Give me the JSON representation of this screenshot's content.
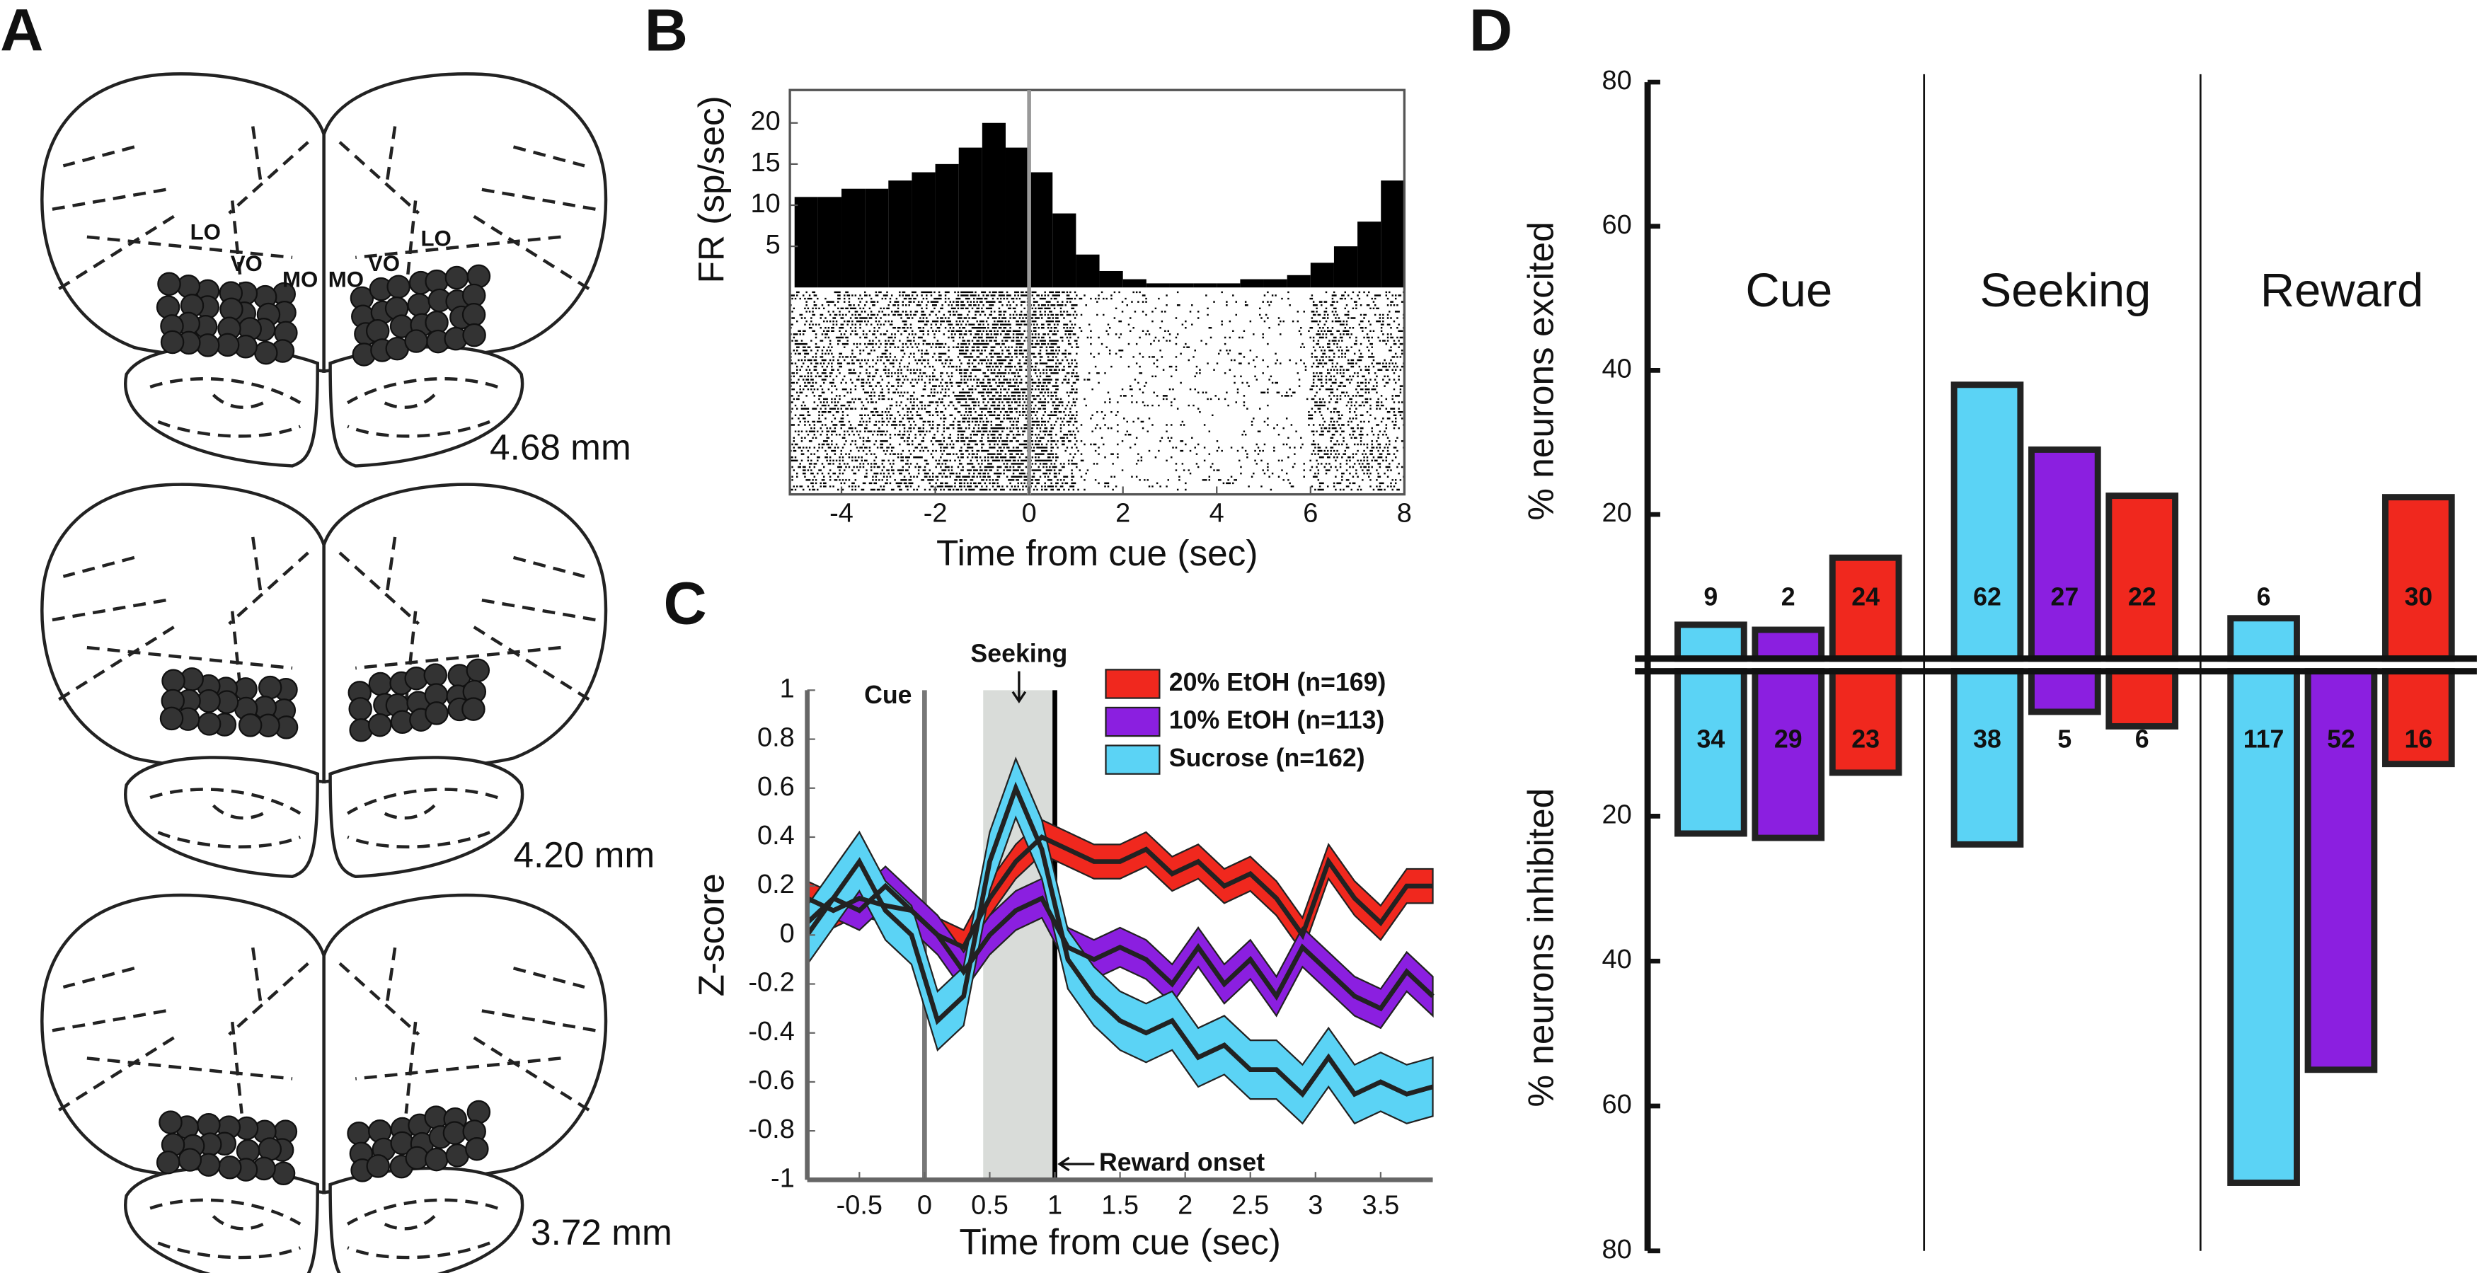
{
  "panel_labels": [
    "A",
    "B",
    "C",
    "D"
  ],
  "sections": {
    "region_labels": [
      "LO",
      "VO",
      "MO",
      "MO",
      "VO",
      "LO"
    ],
    "depths": [
      "4.68 mm",
      "4.20 mm",
      "3.72 mm"
    ]
  },
  "chart_data": [
    {
      "type": "histogram",
      "xlabel": "Time from cue (sec)",
      "ylabel": "FR (sp/sec)",
      "bins": [
        -5,
        -4.5,
        -4,
        -3.5,
        -3,
        -2.5,
        -2,
        -1.5,
        -1,
        -0.5,
        0,
        0.5,
        1,
        1.5,
        2,
        2.5,
        3,
        3.5,
        4,
        4.5,
        5,
        5.5,
        6,
        6.5,
        7,
        7.5,
        8
      ],
      "values": [
        11,
        11,
        12,
        12,
        13,
        14,
        15,
        17,
        20,
        17,
        14,
        9,
        4,
        2,
        1,
        0.5,
        0.5,
        0.5,
        0.5,
        1,
        1,
        1.5,
        3,
        5,
        8,
        13
      ],
      "color": "#000000",
      "xlim": [
        -5.1,
        8
      ],
      "xticks": [
        -4,
        -2,
        0,
        2,
        4,
        6,
        8
      ],
      "ylim": [
        0,
        24
      ],
      "yticks": [
        5,
        10,
        15,
        20
      ],
      "vline": 0
    },
    {
      "type": "line",
      "xlabel": "Time from cue (sec)",
      "ylabel": "Z-score",
      "x": [
        -0.9,
        -0.7,
        -0.5,
        -0.3,
        -0.1,
        0.1,
        0.3,
        0.5,
        0.7,
        0.9,
        1.1,
        1.3,
        1.5,
        1.7,
        1.9,
        2.1,
        2.3,
        2.5,
        2.7,
        2.9,
        3.1,
        3.3,
        3.5,
        3.7,
        3.9
      ],
      "series": [
        {
          "name": "20% EtOH (n=169)",
          "color": "#f0281e",
          "values": [
            0.15,
            0.1,
            0.15,
            0.12,
            0.1,
            0.0,
            -0.05,
            0.15,
            0.3,
            0.4,
            0.35,
            0.3,
            0.3,
            0.35,
            0.25,
            0.3,
            0.2,
            0.25,
            0.15,
            0.0,
            0.3,
            0.15,
            0.05,
            0.2,
            0.2
          ],
          "error": [
            0.07,
            0.07,
            0.07,
            0.07,
            0.07,
            0.07,
            0.07,
            0.07,
            0.07,
            0.07,
            0.07,
            0.07,
            0.07,
            0.07,
            0.07,
            0.07,
            0.07,
            0.07,
            0.07,
            0.07,
            0.07,
            0.07,
            0.07,
            0.07,
            0.07
          ]
        },
        {
          "name": "10% EtOH (n=113)",
          "color": "#8b1fe0",
          "values": [
            0.05,
            0.15,
            0.1,
            0.2,
            0.1,
            0.0,
            -0.15,
            0.0,
            0.1,
            0.15,
            -0.05,
            -0.1,
            -0.05,
            -0.1,
            -0.2,
            -0.05,
            -0.2,
            -0.1,
            -0.25,
            -0.05,
            -0.15,
            -0.25,
            -0.3,
            -0.15,
            -0.25
          ],
          "error": [
            0.08,
            0.08,
            0.08,
            0.08,
            0.08,
            0.08,
            0.08,
            0.08,
            0.08,
            0.08,
            0.08,
            0.08,
            0.08,
            0.08,
            0.08,
            0.08,
            0.08,
            0.08,
            0.08,
            0.08,
            0.08,
            0.08,
            0.08,
            0.08,
            0.08
          ]
        },
        {
          "name": "Sucrose (n=162)",
          "color": "#5bd3f5",
          "values": [
            0.0,
            0.15,
            0.3,
            0.1,
            0.0,
            -0.35,
            -0.25,
            0.3,
            0.6,
            0.35,
            -0.1,
            -0.25,
            -0.35,
            -0.4,
            -0.35,
            -0.5,
            -0.45,
            -0.55,
            -0.55,
            -0.65,
            -0.5,
            -0.65,
            -0.6,
            -0.65,
            -0.62
          ],
          "error": [
            0.12,
            0.12,
            0.12,
            0.12,
            0.12,
            0.12,
            0.12,
            0.12,
            0.12,
            0.12,
            0.12,
            0.12,
            0.12,
            0.12,
            0.12,
            0.12,
            0.12,
            0.12,
            0.12,
            0.12,
            0.12,
            0.12,
            0.12,
            0.12,
            0.12
          ]
        }
      ],
      "xlim": [
        -0.9,
        3.9
      ],
      "xticks": [
        -0.5,
        0,
        0.5,
        1,
        1.5,
        2,
        2.5,
        3,
        3.5
      ],
      "ylim": [
        -1,
        1
      ],
      "yticks": [
        -1,
        -0.8,
        -0.6,
        -0.4,
        -0.2,
        0,
        0.2,
        0.4,
        0.6,
        0.8,
        1
      ],
      "shaded": [
        0.45,
        1
      ],
      "shade_color": "#d9dcd9",
      "vlines": [
        0,
        1
      ],
      "vline_colors": [
        "#777777",
        "#000000"
      ],
      "annotations": {
        "cue": "Cue",
        "seeking": "Seeking",
        "reward": "Reward onset"
      }
    },
    {
      "type": "bar",
      "ylabel": "% neurons excited",
      "y2label": "% neurons inhibited",
      "categories": [
        "Cue",
        "Seeking",
        "Reward"
      ],
      "series": [
        {
          "color": "#5bd3f5",
          "values": [
            4.7,
            38,
            5.6
          ],
          "counts": [
            9,
            62,
            6
          ],
          "inhibited": [
            22.4,
            23.9,
            70.6
          ],
          "inhibited_counts": [
            34,
            38,
            117
          ]
        },
        {
          "color": "#8b1fe0",
          "values": [
            4,
            29,
            null
          ],
          "counts": [
            2,
            27,
            null
          ],
          "inhibited": [
            23,
            5.6,
            55
          ],
          "inhibited_counts": [
            29,
            5,
            52
          ]
        },
        {
          "color": "#f0281e",
          "values": [
            14,
            22.6,
            22.4
          ],
          "counts": [
            24,
            22,
            30
          ],
          "inhibited": [
            14,
            7.6,
            12.8
          ],
          "inhibited_counts": [
            23,
            6,
            16
          ]
        }
      ],
      "ylim": [
        0,
        80
      ],
      "yticks": [
        20,
        40,
        60,
        80
      ],
      "y2lim": [
        0,
        80
      ],
      "y2ticks": [
        20,
        40,
        60,
        80
      ]
    }
  ]
}
